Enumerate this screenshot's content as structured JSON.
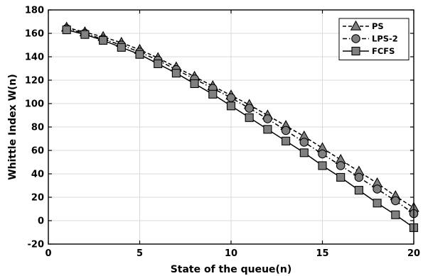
{
  "chart_data": {
    "type": "line",
    "title": "",
    "xlabel": "State of the queue(n)",
    "ylabel": "Whittle Index W(n)",
    "xlim": [
      0,
      20
    ],
    "ylim": [
      -20,
      180
    ],
    "xticks": [
      0,
      5,
      10,
      15,
      20
    ],
    "yticks": [
      -20,
      0,
      20,
      40,
      60,
      80,
      100,
      120,
      140,
      160,
      180
    ],
    "grid": true,
    "legend": "top-right",
    "x": [
      1,
      2,
      3,
      4,
      5,
      6,
      7,
      8,
      9,
      10,
      11,
      12,
      13,
      14,
      15,
      16,
      17,
      18,
      19,
      20
    ],
    "series": [
      {
        "name": "PS",
        "marker": "triangle",
        "line_style": "dashed",
        "color": "#000000",
        "fill": "#808080",
        "values": [
          165,
          161,
          157,
          152,
          146,
          139,
          131,
          123,
          115,
          107,
          99,
          90,
          81,
          72,
          62,
          52,
          42,
          32,
          21,
          11
        ]
      },
      {
        "name": "LPS-2",
        "marker": "circle",
        "line_style": "dash-dot",
        "color": "#000000",
        "fill": "#808080",
        "values": [
          164,
          160,
          155,
          150,
          144,
          137,
          129,
          121,
          113,
          105,
          96,
          87,
          77,
          67,
          57,
          47,
          37,
          27,
          17,
          6
        ]
      },
      {
        "name": "FCFS",
        "marker": "square",
        "line_style": "solid",
        "color": "#000000",
        "fill": "#808080",
        "values": [
          163,
          159,
          154,
          148,
          142,
          134,
          126,
          117,
          108,
          98,
          88,
          78,
          68,
          58,
          47,
          37,
          26,
          15,
          5,
          -6
        ]
      }
    ]
  }
}
